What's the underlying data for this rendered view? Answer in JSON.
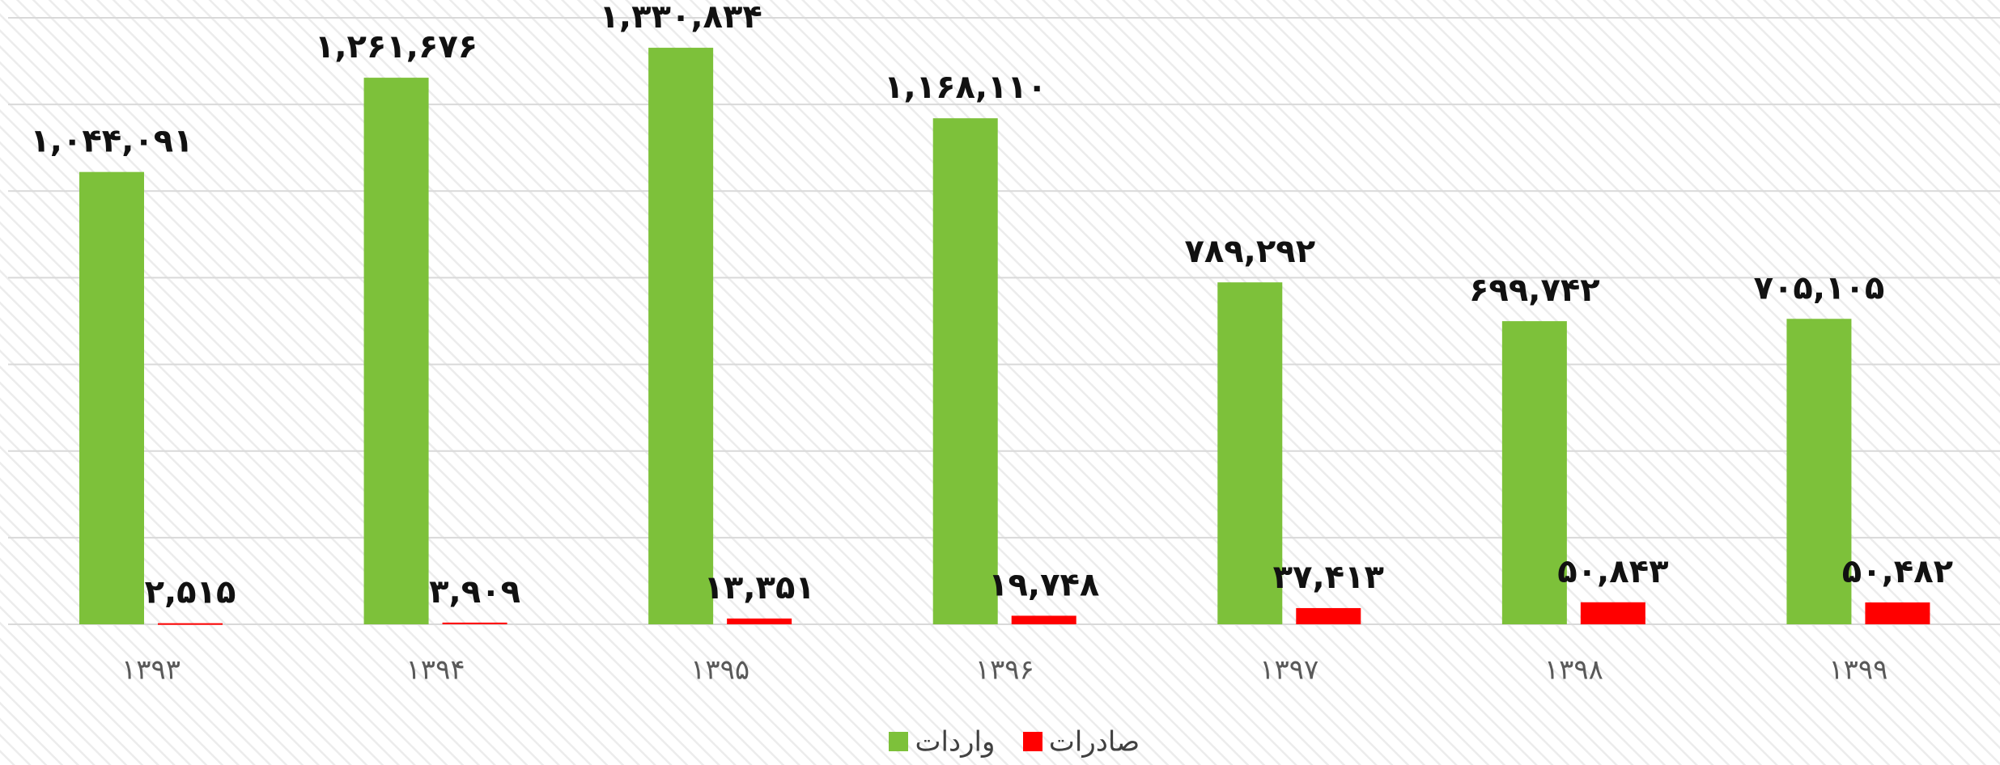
{
  "chart_data": {
    "type": "bar",
    "categories": [
      "۱۳۹۳",
      "۱۳۹۴",
      "۱۳۹۵",
      "۱۳۹۶",
      "۱۳۹۷",
      "۱۳۹۸",
      "۱۳۹۹"
    ],
    "series": [
      {
        "name": "واردات",
        "color": "#7dc13a",
        "values": [
          1044091,
          1261676,
          1330834,
          1168110,
          789292,
          699742,
          705105
        ],
        "value_labels": [
          "۱,۰۴۴,۰۹۱",
          "۱,۲۶۱,۶۷۶",
          "۱,۳۳۰,۸۳۴",
          "۱,۱۶۸,۱۱۰",
          "۷۸۹,۲۹۲",
          "۶۹۹,۷۴۲",
          "۷۰۵,۱۰۵"
        ]
      },
      {
        "name": "صادرات",
        "color": "#ff0000",
        "values": [
          2515,
          3909,
          13351,
          19748,
          37413,
          50843,
          50482
        ],
        "value_labels": [
          "۲,۵۱۵",
          "۳,۹۰۹",
          "۱۳,۳۵۱",
          "۱۹,۷۴۸",
          "۳۷,۴۱۳",
          "۵۰,۸۴۳",
          "۵۰,۴۸۲"
        ]
      }
    ],
    "ylim": [
      0,
      1400000
    ],
    "yticks": [
      0,
      200000,
      400000,
      600000,
      800000,
      1000000,
      1200000,
      1400000
    ],
    "grid": true
  }
}
